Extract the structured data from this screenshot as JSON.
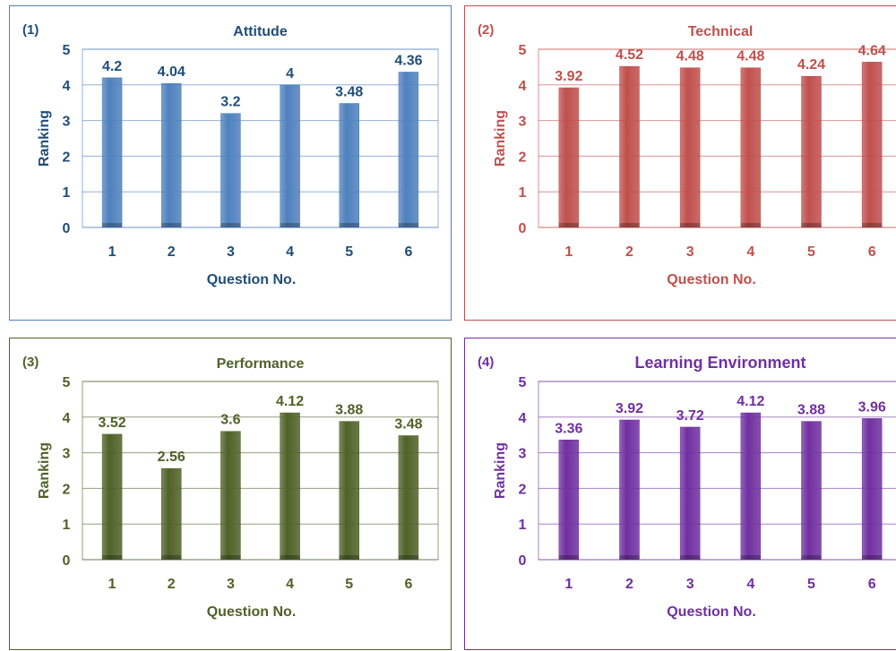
{
  "chart_data": [
    {
      "panel_label": "(1)",
      "type": "bar",
      "title": "Attitude",
      "xlabel": "Question No.",
      "ylabel": "Ranking",
      "categories": [
        "1",
        "2",
        "3",
        "4",
        "5",
        "6"
      ],
      "values": [
        4.2,
        4.04,
        3.2,
        4,
        3.48,
        4.36
      ],
      "value_labels": [
        "4.2",
        "4.04",
        "3.2",
        "4",
        "3.48",
        "4.36"
      ],
      "yticks": [
        "0",
        "1",
        "2",
        "3",
        "4",
        "5"
      ],
      "ylim": [
        0,
        5
      ],
      "grid": true,
      "colors": {
        "bar": "#4f81bd",
        "text": "#1f4e79",
        "border": "#4f81bd"
      }
    },
    {
      "panel_label": "(2)",
      "type": "bar",
      "title": "Technical",
      "xlabel": "Question No.",
      "ylabel": "Ranking",
      "categories": [
        "1",
        "2",
        "3",
        "4",
        "5",
        "6"
      ],
      "values": [
        3.92,
        4.52,
        4.48,
        4.48,
        4.24,
        4.64
      ],
      "value_labels": [
        "3.92",
        "4.52",
        "4.48",
        "4.48",
        "4.24",
        "4.64"
      ],
      "yticks": [
        "0",
        "1",
        "2",
        "3",
        "4",
        "5"
      ],
      "ylim": [
        0,
        5
      ],
      "grid": true,
      "colors": {
        "bar": "#c0504d",
        "text": "#c0504d",
        "border": "#c0504d"
      }
    },
    {
      "panel_label": "(3)",
      "type": "bar",
      "title": "Performance",
      "xlabel": "Question No.",
      "ylabel": "Ranking",
      "categories": [
        "1",
        "2",
        "3",
        "4",
        "5",
        "6"
      ],
      "values": [
        3.52,
        2.56,
        3.6,
        4.12,
        3.88,
        3.48
      ],
      "value_labels": [
        "3.52",
        "2.56",
        "3.6",
        "4.12",
        "3.88",
        "3.48"
      ],
      "yticks": [
        "0",
        "1",
        "2",
        "3",
        "4",
        "5"
      ],
      "ylim": [
        0,
        5
      ],
      "grid": true,
      "colors": {
        "bar": "#4f6228",
        "text": "#4f6228",
        "border": "#4f6228"
      }
    },
    {
      "panel_label": "(4)",
      "type": "bar",
      "title": "Learning Environment",
      "xlabel": "Question No.",
      "ylabel": "Ranking",
      "categories": [
        "1",
        "2",
        "3",
        "4",
        "5",
        "6"
      ],
      "values": [
        3.36,
        3.92,
        3.72,
        4.12,
        3.88,
        3.96
      ],
      "value_labels": [
        "3.36",
        "3.92",
        "3.72",
        "4.12",
        "3.88",
        "3.96"
      ],
      "yticks": [
        "0",
        "1",
        "2",
        "3",
        "4",
        "5"
      ],
      "ylim": [
        0,
        5
      ],
      "grid": true,
      "colors": {
        "bar": "#7030a0",
        "text": "#7030a0",
        "border": "#7030a0"
      }
    }
  ]
}
